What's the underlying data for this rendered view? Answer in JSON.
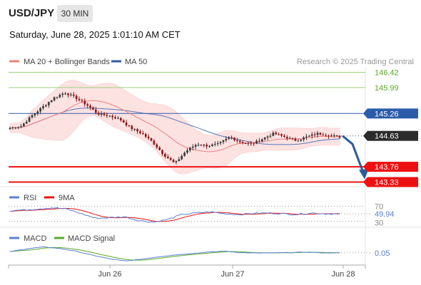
{
  "header": {
    "symbol": "USD/JPY",
    "timeframe": "30 MIN",
    "datetime": "Saturday, June 28, 2025 1:01:10 AM CET"
  },
  "legend": {
    "ma20": "MA 20 + Bollinger Bands",
    "ma50": "MA 50",
    "ma20_color": "#f08080",
    "ma50_color": "#2b5caa",
    "credit": "Research © 2025 Trading Central"
  },
  "colors": {
    "up": "#3a3a3a",
    "down": "#8b1a1a",
    "band": "#fde2e2",
    "resistance_green": "#9bd17a",
    "pivot_blue": "#2b5caa",
    "support_red": "#ee1111",
    "rsi": "#5b7fd4",
    "rsi_ma": "#ee1111",
    "macd": "#5b7fd4",
    "macd_signal": "#5aaa2a"
  },
  "chart_data": [
    {
      "type": "candlestick",
      "panel": "price",
      "x_ticks": [
        "Jun 26",
        "Jun 27",
        "Jun 28"
      ],
      "ylim": [
        143.2,
        146.55
      ],
      "levels": [
        {
          "label": "146.42",
          "value": 146.42,
          "kind": "resistance"
        },
        {
          "label": "145.99",
          "value": 145.99,
          "kind": "resistance"
        },
        {
          "label": "145.26",
          "value": 145.26,
          "kind": "pivot"
        },
        {
          "label": "144.63",
          "value": 144.63,
          "kind": "last"
        },
        {
          "label": "143.76",
          "value": 143.76,
          "kind": "support"
        },
        {
          "label": "143.33",
          "value": 143.33,
          "kind": "support"
        }
      ],
      "forecast_path": [
        144.63,
        144.4,
        143.55
      ],
      "keypoints": [
        144.85,
        144.9,
        145.2,
        145.45,
        145.7,
        145.85,
        145.7,
        145.5,
        145.25,
        145.2,
        145.1,
        144.85,
        144.7,
        144.45,
        144.1,
        143.85,
        144.2,
        144.4,
        144.35,
        144.4,
        144.6,
        144.45,
        144.4,
        144.55,
        144.7,
        144.6,
        144.5,
        144.6,
        144.7,
        144.65,
        144.6
      ]
    },
    {
      "type": "line",
      "panel": "rsi",
      "series": [
        {
          "name": "RSI",
          "last": 49.94
        },
        {
          "name": "9MA"
        }
      ],
      "y_ticks": [
        "70",
        "30"
      ],
      "last_label": "49.94",
      "keypoints": [
        58,
        60,
        63,
        66,
        62,
        50,
        38,
        40,
        42,
        32,
        28,
        35,
        48,
        52,
        55,
        50,
        48,
        51,
        52,
        50,
        48,
        52,
        50,
        49.94
      ]
    },
    {
      "type": "line",
      "panel": "macd",
      "series": [
        {
          "name": "MACD",
          "last": 0.05
        },
        {
          "name": "MACD Signal"
        }
      ],
      "last_label": "0.05",
      "keypoints": [
        0.1,
        0.22,
        0.3,
        0.24,
        0.12,
        -0.05,
        -0.2,
        -0.3,
        -0.22,
        -0.12,
        -0.04,
        0.02,
        0.08,
        0.12,
        0.06,
        0.04,
        0.05,
        0.06,
        0.08,
        0.05,
        0.05
      ]
    }
  ]
}
